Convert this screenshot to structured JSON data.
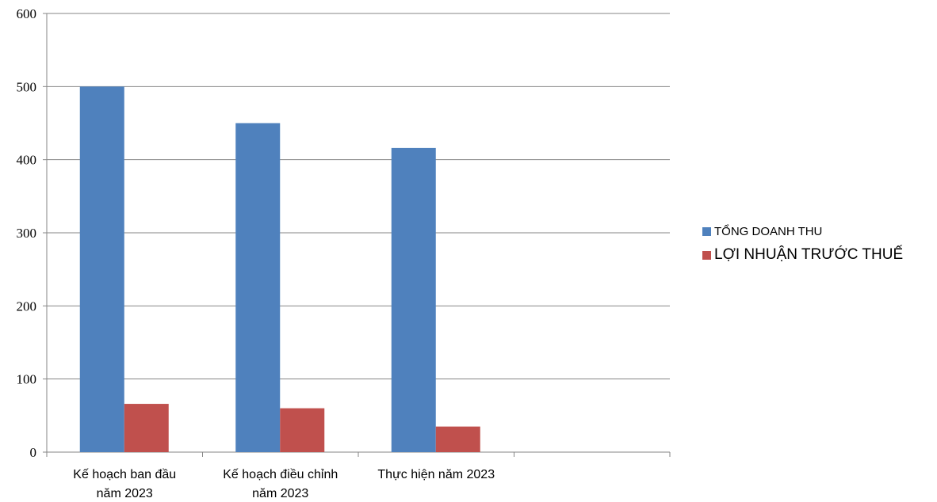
{
  "chart_data": {
    "type": "bar",
    "title": "",
    "xlabel": "",
    "ylabel": "",
    "ylim": [
      0,
      600
    ],
    "yticks": [
      0,
      100,
      200,
      300,
      400,
      500,
      600
    ],
    "grid": true,
    "legend_position": "right",
    "categories": [
      [
        "Kế hoạch ban đầu",
        "năm 2023"
      ],
      [
        "Kế hoạch điều chỉnh",
        "năm 2023"
      ],
      [
        "Thực hiện năm 2023"
      ],
      []
    ],
    "series": [
      {
        "name": "TỔNG DOANH THU",
        "color": "#4f81bd",
        "values": [
          500,
          450,
          416,
          null
        ]
      },
      {
        "name": "LỢI NHUẬN TRƯỚC THUẾ",
        "color": "#c0504d",
        "values": [
          66,
          60,
          35,
          null
        ]
      }
    ]
  }
}
